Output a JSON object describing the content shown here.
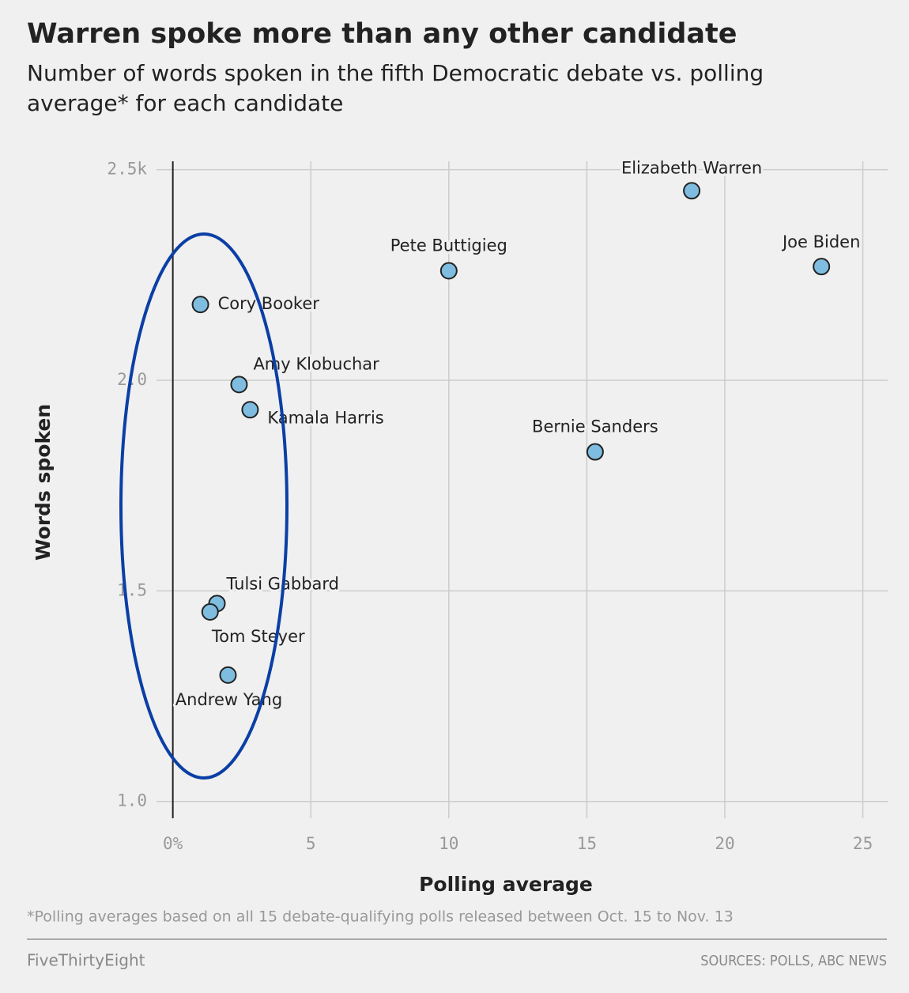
{
  "chart_data": {
    "type": "scatter",
    "title": "Warren spoke more than any other candidate",
    "subtitle": "Number of words spoken in the fifth Democratic debate vs. polling average* for each candidate",
    "x_label": "Polling average",
    "y_label": "Words spoken",
    "labels": [
      "Elizabeth Warren",
      "Joe Biden",
      "Pete Buttigieg",
      "Cory Booker",
      "Amy Klobuchar",
      "Kamala Harris",
      "Bernie Sanders",
      "Tulsi Gabbard",
      "Tom Steyer",
      "Andrew Yang"
    ],
    "x": [
      18.8,
      23.5,
      10.0,
      1.0,
      2.4,
      2.8,
      15.3,
      1.6,
      1.35,
      2.0
    ],
    "values": [
      2.45,
      2.27,
      2.26,
      2.18,
      1.99,
      1.93,
      1.83,
      1.47,
      1.45,
      1.3
    ],
    "color": "#7fbde0",
    "xlim": [
      -1.25,
      25.9
    ],
    "xticks": [
      {
        "value": 0,
        "label": "0%"
      },
      5,
      10,
      15,
      20,
      25
    ],
    "ylim": [
      0.96,
      2.52
    ],
    "yticks": [
      {
        "value": 1,
        "label": "1.0"
      },
      1.5,
      {
        "value": 2,
        "label": "2.0"
      },
      {
        "value": 2.5,
        "label": "2.5k"
      }
    ],
    "grid": true,
    "footnote": "*Polling averages based on all 15 debate-qualifying polls released between Oct. 15 to Nov. 13",
    "brand": "FiveThirtyEight",
    "source": "SOURCES: POLLS, ABC NEWS"
  }
}
